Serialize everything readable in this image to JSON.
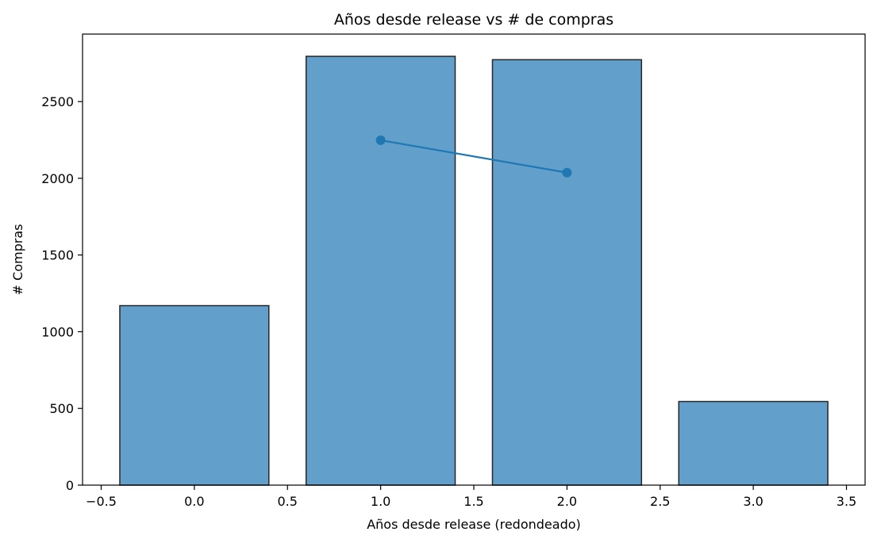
{
  "chart_data": {
    "type": "bar",
    "title": "Años desde release vs # de compras",
    "xlabel": "Años desde release (redondeado)",
    "ylabel": "# Compras",
    "xlim": [
      -0.6,
      3.6
    ],
    "ylim": [
      0,
      2940
    ],
    "x_ticks": [
      -0.5,
      0.0,
      0.5,
      1.0,
      1.5,
      2.0,
      2.5,
      3.0,
      3.5
    ],
    "x_tick_labels": [
      "−0.5",
      "0.0",
      "0.5",
      "1.0",
      "1.5",
      "2.0",
      "2.5",
      "3.0",
      "3.5"
    ],
    "y_ticks": [
      0,
      500,
      1000,
      1500,
      2000,
      2500
    ],
    "y_tick_labels": [
      "0",
      "500",
      "1000",
      "1500",
      "2000",
      "2500"
    ],
    "bar_width": 0.8,
    "grid": false,
    "bars": {
      "x": [
        0,
        1,
        2,
        3
      ],
      "values": [
        1170,
        2795,
        2773,
        545
      ],
      "color": "#62a0cb",
      "edge_color": "#262626"
    },
    "line": {
      "x": [
        1,
        2
      ],
      "values": [
        2248,
        2037
      ],
      "color": "#1f77b4"
    }
  }
}
